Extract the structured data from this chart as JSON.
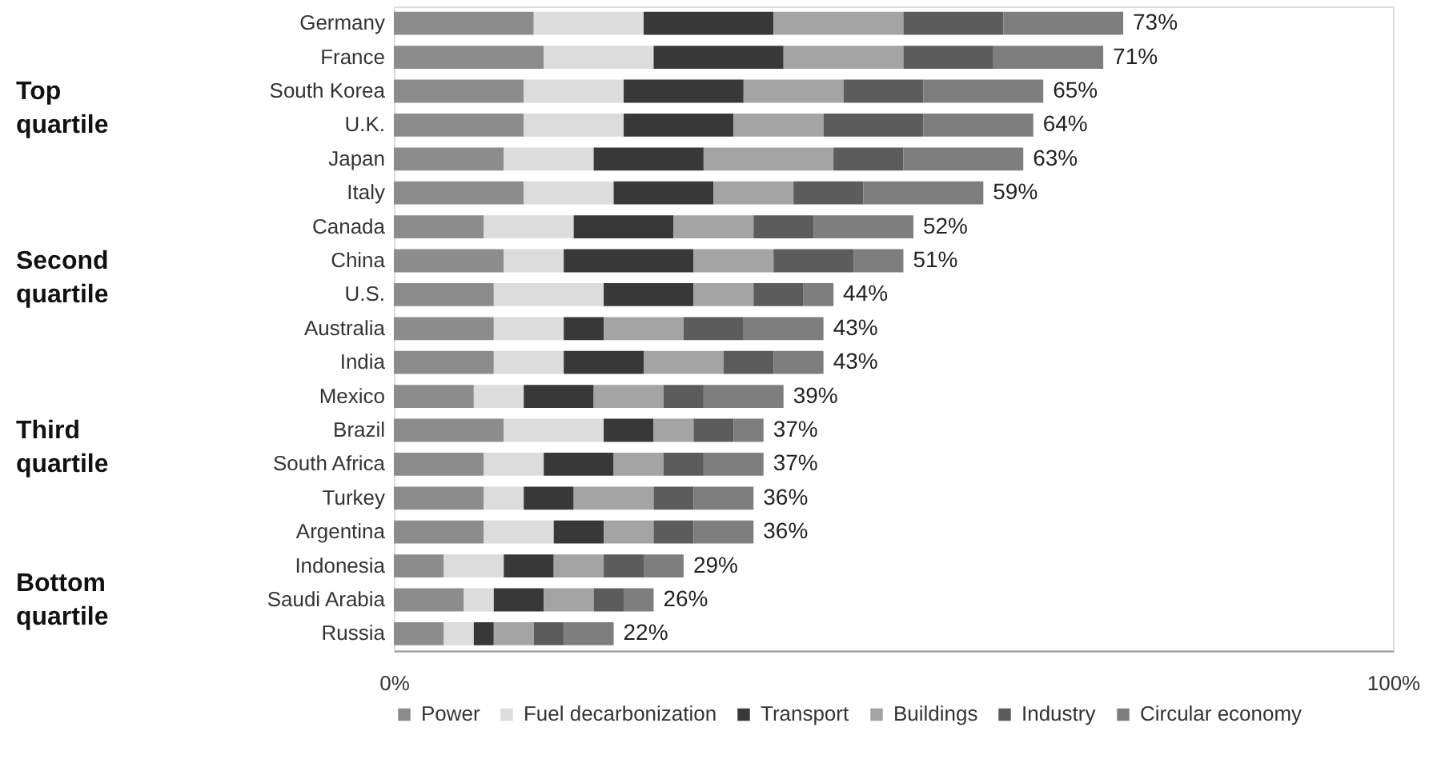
{
  "chart_data": {
    "type": "bar",
    "orientation": "horizontal",
    "stacked": true,
    "categories": [
      "Germany",
      "France",
      "South Korea",
      "U.K.",
      "Japan",
      "Italy",
      "Canada",
      "China",
      "U.S.",
      "Australia",
      "India",
      "Mexico",
      "Brazil",
      "South Africa",
      "Turkey",
      "Argentina",
      "Indonesia",
      "Saudi Arabia",
      "Russia"
    ],
    "series": [
      {
        "name": "Power",
        "color": "#8c8c8c",
        "values": [
          14,
          15,
          13,
          13,
          11,
          13,
          9,
          11,
          10,
          10,
          10,
          8,
          11,
          9,
          9,
          9,
          5,
          7,
          5
        ]
      },
      {
        "name": "Fuel decarbonization",
        "color": "#dcdcdc",
        "values": [
          11,
          11,
          10,
          10,
          9,
          9,
          9,
          6,
          11,
          7,
          7,
          5,
          10,
          6,
          4,
          7,
          6,
          3,
          3
        ]
      },
      {
        "name": "Transport",
        "color": "#383838",
        "values": [
          13,
          13,
          12,
          11,
          11,
          10,
          10,
          13,
          9,
          4,
          8,
          7,
          5,
          7,
          5,
          5,
          5,
          5,
          2
        ]
      },
      {
        "name": "Buildings",
        "color": "#a4a4a4",
        "values": [
          13,
          12,
          10,
          9,
          13,
          8,
          8,
          8,
          6,
          8,
          8,
          7,
          4,
          5,
          8,
          5,
          5,
          5,
          4
        ]
      },
      {
        "name": "Industry",
        "color": "#5c5c5c",
        "values": [
          10,
          9,
          8,
          10,
          7,
          7,
          6,
          8,
          5,
          6,
          5,
          4,
          4,
          4,
          4,
          4,
          4,
          3,
          3
        ]
      },
      {
        "name": "Circular economy",
        "color": "#7e7e7e",
        "values": [
          12,
          11,
          12,
          11,
          12,
          12,
          10,
          5,
          3,
          8,
          5,
          8,
          3,
          6,
          6,
          6,
          4,
          3,
          5
        ]
      }
    ],
    "totals": [
      "73%",
      "71%",
      "65%",
      "64%",
      "63%",
      "59%",
      "52%",
      "51%",
      "44%",
      "43%",
      "43%",
      "39%",
      "37%",
      "37%",
      "36%",
      "36%",
      "29%",
      "26%",
      "22%"
    ],
    "xlim": [
      0,
      100
    ],
    "xticks": [
      {
        "value": 0,
        "label": "0%"
      },
      {
        "value": 100,
        "label": "100%"
      }
    ],
    "annotations": [
      "Top quartile",
      "Second quartile",
      "Third quartile",
      "Bottom quartile"
    ],
    "legend": "bottom",
    "grid": false
  }
}
